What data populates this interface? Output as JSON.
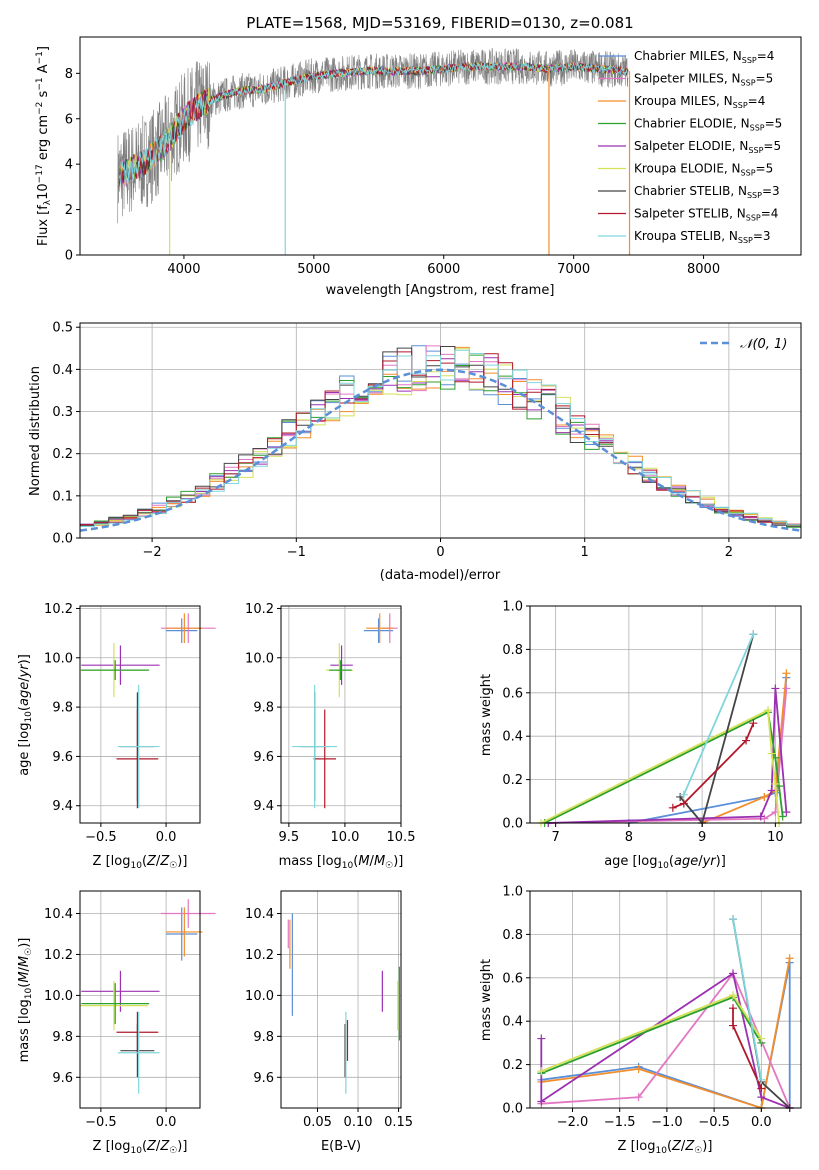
{
  "chart_data": [
    {
      "type": "line",
      "title": "PLATE=1568, MJD=53169, FIBERID=0130, z=0.081",
      "xlabel": "wavelength [Angstrom, rest frame]",
      "ylabel": "Flux [f_λ 10^-17 erg cm^-2 s^-1 A^-1]",
      "xlim": [
        3200,
        8750
      ],
      "ylim": [
        0,
        9.6
      ],
      "xticks": [
        4000,
        5000,
        6000,
        7000,
        8000
      ],
      "yticks": [
        0,
        2,
        4,
        6,
        8
      ],
      "grid": false,
      "legend_position": "top-right",
      "data_color": "#808080",
      "series": [
        {
          "name": "Chabrier MILES, N_SSP=4",
          "color": "#5b8fd8"
        },
        {
          "name": "Salpeter MILES, N_SSP=5",
          "color": "#e377c2"
        },
        {
          "name": "Kroupa MILES, N_SSP=4",
          "color": "#f28e2b"
        },
        {
          "name": "Chabrier ELODIE, N_SSP=5",
          "color": "#2ca02c"
        },
        {
          "name": "Salpeter ELODIE, N_SSP=5",
          "color": "#9b30b0"
        },
        {
          "name": "Kroupa ELODIE, N_SSP=5",
          "color": "#d4e157"
        },
        {
          "name": "Chabrier STELIB, N_SSP=3",
          "color": "#444444"
        },
        {
          "name": "Salpeter STELIB, N_SSP=4",
          "color": "#b2182b"
        },
        {
          "name": "Kroupa STELIB, N_SSP=3",
          "color": "#7fd6dc"
        }
      ],
      "continuum": {
        "x": [
          3500,
          3600,
          3700,
          3800,
          3900,
          4000,
          4100,
          4200,
          4400,
          4600,
          4800,
          5000,
          5200,
          5400,
          5600,
          5800,
          6000,
          6200,
          6400,
          6600,
          6800,
          7000,
          7200,
          7400
        ],
        "y": [
          3.5,
          3.8,
          4.1,
          4.6,
          5.2,
          6.0,
          6.5,
          6.8,
          7.2,
          7.3,
          7.6,
          7.9,
          8.0,
          8.1,
          8.1,
          8.1,
          8.2,
          8.3,
          8.3,
          8.3,
          8.2,
          8.3,
          8.2,
          8.1
        ]
      }
    },
    {
      "type": "line",
      "xlabel": "(data-model)/error",
      "ylabel": "Normed distribution",
      "xlim": [
        -2.5,
        2.5
      ],
      "ylim": [
        0,
        0.51
      ],
      "xticks": [
        -2,
        -1,
        0,
        1,
        2
      ],
      "yticks": [
        0.0,
        0.1,
        0.2,
        0.3,
        0.4,
        0.5
      ],
      "grid": true,
      "legend_position": "top-right",
      "legend": [
        "𝒩(0, 1)"
      ],
      "reference_color": "#5b8fd8"
    },
    {
      "type": "scatter",
      "xlabel": "Z [log10(Z/Z☉)]",
      "ylabel": "age  [log10(age/yr)]",
      "xlim": [
        -0.66,
        0.26
      ],
      "ylim": [
        9.33,
        10.21
      ],
      "xticks": [
        -0.5,
        0.0
      ],
      "yticks": [
        9.4,
        9.6,
        9.8,
        10.0,
        10.2
      ],
      "grid": true,
      "points": [
        {
          "color": "#5b8fd8",
          "x": 0.12,
          "xerr": 0.12,
          "y": 10.11,
          "yerr": 0.05
        },
        {
          "color": "#e377c2",
          "x": 0.17,
          "xerr": 0.21,
          "y": 10.12,
          "yerr": 0.06
        },
        {
          "color": "#f28e2b",
          "x": 0.14,
          "xerr": 0.14,
          "y": 10.12,
          "yerr": 0.06
        },
        {
          "color": "#9b30b0",
          "x": -0.35,
          "xerr": 0.3,
          "y": 9.97,
          "yerr": 0.08
        },
        {
          "color": "#d4e157",
          "x": -0.4,
          "xerr": 0.26,
          "y": 9.95,
          "yerr": 0.11
        },
        {
          "color": "#2ca02c",
          "x": -0.39,
          "xerr": 0.26,
          "y": 9.95,
          "yerr": 0.04
        },
        {
          "color": "#444444",
          "x": -0.22,
          "xerr": 0.13,
          "y": 9.64,
          "yerr": 0.22
        },
        {
          "color": "#b2182b",
          "x": -0.22,
          "xerr": 0.16,
          "y": 9.59,
          "yerr": 0.2
        },
        {
          "color": "#7fd6dc",
          "x": -0.21,
          "xerr": 0.16,
          "y": 9.64,
          "yerr": 0.25
        }
      ]
    },
    {
      "type": "scatter",
      "xlabel": "mass [log10(M/M☉)]",
      "ylabel": "",
      "xlim": [
        9.43,
        10.5
      ],
      "ylim": [
        9.33,
        10.21
      ],
      "xticks": [
        9.5,
        10.0,
        10.5
      ],
      "yticks": [
        9.4,
        9.6,
        9.8,
        10.0,
        10.2
      ],
      "grid": true,
      "points": [
        {
          "color": "#5b8fd8",
          "x": 10.3,
          "xerr": 0.13,
          "y": 10.11,
          "yerr": 0.05
        },
        {
          "color": "#e377c2",
          "x": 10.4,
          "xerr": 0.07,
          "y": 10.12,
          "yerr": 0.06
        },
        {
          "color": "#f28e2b",
          "x": 10.31,
          "xerr": 0.12,
          "y": 10.12,
          "yerr": 0.06
        },
        {
          "color": "#9b30b0",
          "x": 9.97,
          "xerr": 0.1,
          "y": 9.97,
          "yerr": 0.08
        },
        {
          "color": "#d4e157",
          "x": 9.95,
          "xerr": 0.12,
          "y": 9.95,
          "yerr": 0.11
        },
        {
          "color": "#2ca02c",
          "x": 9.96,
          "xerr": 0.1,
          "y": 9.95,
          "yerr": 0.04
        },
        {
          "color": "#444444",
          "x": 9.73,
          "xerr": 0.13,
          "y": 9.64,
          "yerr": 0.22
        },
        {
          "color": "#b2182b",
          "x": 9.82,
          "xerr": 0.1,
          "y": 9.59,
          "yerr": 0.2
        },
        {
          "color": "#7fd6dc",
          "x": 9.73,
          "xerr": 0.2,
          "y": 9.64,
          "yerr": 0.25
        }
      ]
    },
    {
      "type": "line",
      "xlabel": "age  [log10(age/yr)]",
      "ylabel": "mass weight",
      "xlim": [
        6.65,
        10.35
      ],
      "ylim": [
        0,
        1.0
      ],
      "xticks": [
        7,
        8,
        9,
        10
      ],
      "yticks": [
        0.0,
        0.2,
        0.4,
        0.6,
        0.8,
        1.0
      ],
      "grid": true,
      "series": [
        {
          "color": "#5b8fd8",
          "x": [
            8.0,
            9.85,
            10.0,
            10.15
          ],
          "y": [
            0.0,
            0.12,
            0.14,
            0.67
          ]
        },
        {
          "color": "#f28e2b",
          "x": [
            9.0,
            9.85,
            10.0,
            10.15
          ],
          "y": [
            0.0,
            0.12,
            0.15,
            0.69
          ]
        },
        {
          "color": "#e377c2",
          "x": [
            6.9,
            9.85,
            10.0,
            10.15
          ],
          "y": [
            0.0,
            0.02,
            0.05,
            0.62
          ]
        },
        {
          "color": "#9b30b0",
          "x": [
            6.9,
            9.8,
            9.95,
            10.0,
            10.15
          ],
          "y": [
            0.0,
            0.03,
            0.15,
            0.62,
            0.05
          ]
        },
        {
          "color": "#2ca02c",
          "x": [
            6.85,
            9.9,
            10.0,
            10.05,
            10.1
          ],
          "y": [
            0.0,
            0.51,
            0.3,
            0.17,
            0.03
          ]
        },
        {
          "color": "#d4e157",
          "x": [
            6.8,
            9.9,
            9.95,
            10.0,
            10.05
          ],
          "y": [
            0.0,
            0.52,
            0.32,
            0.18,
            0.0
          ]
        },
        {
          "color": "#444444",
          "x": [
            8.7,
            9.0,
            9.7
          ],
          "y": [
            0.12,
            0.0,
            0.87
          ]
        },
        {
          "color": "#b2182b",
          "x": [
            8.6,
            8.75,
            9.6,
            9.7
          ],
          "y": [
            0.07,
            0.09,
            0.38,
            0.46
          ]
        },
        {
          "color": "#7fd6dc",
          "x": [
            8.75,
            9.7
          ],
          "y": [
            0.13,
            0.87
          ]
        }
      ]
    },
    {
      "type": "scatter",
      "xlabel": "Z [log10(Z/Z☉)]",
      "ylabel": "mass [log10(M/M☉)]",
      "xlim": [
        -0.66,
        0.26
      ],
      "ylim": [
        9.45,
        10.51
      ],
      "xticks": [
        -0.5,
        0.0
      ],
      "yticks": [
        9.6,
        9.8,
        10.0,
        10.2,
        10.4
      ],
      "grid": true,
      "points": [
        {
          "color": "#5b8fd8",
          "x": 0.12,
          "xerr": 0.12,
          "y": 10.3,
          "yerr": 0.13
        },
        {
          "color": "#e377c2",
          "x": 0.17,
          "xerr": 0.21,
          "y": 10.4,
          "yerr": 0.07
        },
        {
          "color": "#f28e2b",
          "x": 0.14,
          "xerr": 0.14,
          "y": 10.31,
          "yerr": 0.12
        },
        {
          "color": "#9b30b0",
          "x": -0.35,
          "xerr": 0.3,
          "y": 10.02,
          "yerr": 0.1
        },
        {
          "color": "#d4e157",
          "x": -0.4,
          "xerr": 0.26,
          "y": 9.95,
          "yerr": 0.12
        },
        {
          "color": "#2ca02c",
          "x": -0.39,
          "xerr": 0.26,
          "y": 9.96,
          "yerr": 0.1
        },
        {
          "color": "#444444",
          "x": -0.22,
          "xerr": 0.13,
          "y": 9.73,
          "yerr": 0.13
        },
        {
          "color": "#b2182b",
          "x": -0.22,
          "xerr": 0.16,
          "y": 9.82,
          "yerr": 0.1
        },
        {
          "color": "#7fd6dc",
          "x": -0.21,
          "xerr": 0.16,
          "y": 9.72,
          "yerr": 0.2
        }
      ]
    },
    {
      "type": "scatter",
      "xlabel": "E(B-V)",
      "ylabel": "",
      "xlim": [
        0.005,
        0.153
      ],
      "ylim": [
        9.45,
        10.51
      ],
      "xticks": [
        0.05,
        0.1,
        0.15
      ],
      "yticks": [
        9.6,
        9.8,
        10.0,
        10.2,
        10.4
      ],
      "grid": true,
      "points": [
        {
          "color": "#5b8fd8",
          "x": 0.019,
          "y": 10.15,
          "yerr": 0.25
        },
        {
          "color": "#e377c2",
          "x": 0.014,
          "y": 10.3,
          "yerr": 0.07
        },
        {
          "color": "#f28e2b",
          "x": 0.016,
          "y": 10.25,
          "yerr": 0.12
        },
        {
          "color": "#9b30b0",
          "x": 0.13,
          "y": 10.02,
          "yerr": 0.1
        },
        {
          "color": "#d4e157",
          "x": 0.149,
          "y": 9.95,
          "yerr": 0.12
        },
        {
          "color": "#2ca02c",
          "x": 0.151,
          "y": 9.96,
          "yerr": 0.18
        },
        {
          "color": "#444444",
          "x": 0.084,
          "y": 9.73,
          "yerr": 0.13
        },
        {
          "color": "#b2182b",
          "x": 0.087,
          "y": 9.78,
          "yerr": 0.1
        },
        {
          "color": "#7fd6dc",
          "x": 0.085,
          "y": 9.72,
          "yerr": 0.2
        }
      ]
    },
    {
      "type": "line",
      "xlabel": "Z [log10(Z/Z☉)]",
      "ylabel": "mass weight",
      "xlim": [
        -2.45,
        0.42
      ],
      "ylim": [
        0,
        1.0
      ],
      "xticks": [
        -2.0,
        -1.5,
        -1.0,
        -0.5,
        0.0
      ],
      "yticks": [
        0.0,
        0.2,
        0.4,
        0.6,
        0.8,
        1.0
      ],
      "grid": true,
      "series": [
        {
          "color": "#5b8fd8",
          "x": [
            -2.33,
            -1.3,
            0.0,
            0.3,
            0.3
          ],
          "y": [
            0.13,
            0.19,
            0.0,
            0.67,
            0.0
          ]
        },
        {
          "color": "#f28e2b",
          "x": [
            -2.33,
            -1.3,
            0.0,
            0.3
          ],
          "y": [
            0.12,
            0.18,
            0.0,
            0.69
          ]
        },
        {
          "color": "#e377c2",
          "x": [
            -2.33,
            -1.3,
            -0.3,
            0.3
          ],
          "y": [
            0.02,
            0.05,
            0.62,
            0.0
          ]
        },
        {
          "color": "#9b30b0",
          "x": [
            -2.33,
            -2.33,
            -0.3,
            0.0,
            0.3
          ],
          "y": [
            0.32,
            0.03,
            0.62,
            0.05,
            0.0
          ]
        },
        {
          "color": "#2ca02c",
          "x": [
            -2.33,
            -0.3,
            0.0
          ],
          "y": [
            0.16,
            0.51,
            0.3
          ]
        },
        {
          "color": "#d4e157",
          "x": [
            -2.33,
            -0.3,
            0.0
          ],
          "y": [
            0.17,
            0.52,
            0.32
          ]
        },
        {
          "color": "#444444",
          "x": [
            -0.3,
            0.0,
            0.3
          ],
          "y": [
            0.87,
            0.12,
            0.0
          ]
        },
        {
          "color": "#b2182b",
          "x": [
            -0.3,
            -0.3,
            0.0
          ],
          "y": [
            0.46,
            0.38,
            0.09
          ]
        },
        {
          "color": "#7fd6dc",
          "x": [
            -0.3,
            0.0
          ],
          "y": [
            0.87,
            0.13
          ]
        }
      ]
    }
  ]
}
